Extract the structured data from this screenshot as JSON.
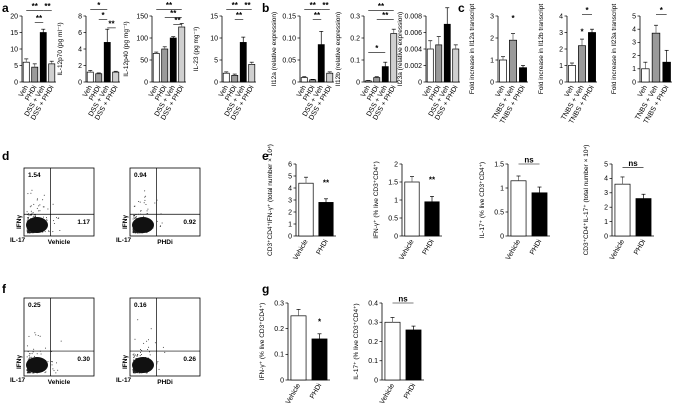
{
  "panels": [
    "a",
    "b",
    "c",
    "d",
    "e",
    "f",
    "g"
  ],
  "flow_axes": {
    "y": "IFNγ",
    "x": "IL-17"
  },
  "flow_plots": [
    {
      "name": "Vehicle",
      "upper_left": "1.54",
      "lower_right": "1.17"
    },
    {
      "name": "PHDi",
      "upper_left": "0.94",
      "lower_right": "0.92"
    },
    {
      "name": "Vehicle",
      "upper_left": "0.25",
      "lower_right": "0.30"
    },
    {
      "name": "PHDi",
      "upper_left": "0.16",
      "lower_right": "0.26"
    }
  ],
  "chart_data": [
    {
      "type": "bar",
      "ylabel": "IFN-γ (pg mg⁻¹)",
      "categories": [
        "Veh",
        "PHDi",
        "DSS + Veh",
        "DSS + PHDi"
      ],
      "values": [
        6,
        4.5,
        15,
        5.5
      ],
      "errors": [
        1,
        1,
        1,
        0.8
      ],
      "colors": [
        "#ffffff",
        "#9a9a9a",
        "#000000",
        "#d0d0d0"
      ],
      "ylim": [
        0,
        20
      ],
      "yticks": [
        0,
        5,
        10,
        15,
        20
      ],
      "significance": [
        "**",
        "**",
        "**"
      ]
    },
    {
      "type": "bar",
      "ylabel": "IL-12p70 (pg ml⁻¹)",
      "categories": [
        "Veh",
        "PHDi",
        "DSS + Veh",
        "DSS + PHDi"
      ],
      "values": [
        1.2,
        1,
        4.8,
        1.2
      ],
      "errors": [
        0.2,
        0.1,
        1.6,
        0.1
      ],
      "colors": [
        "#ffffff",
        "#9a9a9a",
        "#000000",
        "#d0d0d0"
      ],
      "ylim": [
        0,
        8
      ],
      "yticks": [
        0,
        2,
        4,
        6,
        8
      ],
      "significance": [
        "*",
        "*",
        "**"
      ]
    },
    {
      "type": "bar",
      "ylabel": "IL-12p40 (pg mg⁻¹)",
      "categories": [
        "Veh",
        "PHDi",
        "DSS + Veh",
        "DSS + PHDi"
      ],
      "values": [
        65,
        75,
        100,
        125
      ],
      "errors": [
        3,
        5,
        3,
        8
      ],
      "colors": [
        "#ffffff",
        "#9a9a9a",
        "#000000",
        "#d0d0d0"
      ],
      "ylim": [
        0,
        150
      ],
      "yticks": [
        0,
        50,
        100,
        150
      ],
      "significance": [
        "**",
        "**",
        "**"
      ]
    },
    {
      "type": "bar",
      "ylabel": "IL-23 (pg mg⁻¹)",
      "categories": [
        "Veh",
        "PHDi",
        "DSS + Veh",
        "DSS + PHDi"
      ],
      "values": [
        2,
        1.5,
        9,
        4
      ],
      "errors": [
        0.3,
        0.3,
        1.2,
        0.5
      ],
      "colors": [
        "#ffffff",
        "#9a9a9a",
        "#000000",
        "#d0d0d0"
      ],
      "ylim": [
        0,
        15
      ],
      "yticks": [
        0,
        5,
        10,
        15
      ],
      "significance": [
        "**",
        "**",
        "**"
      ]
    },
    {
      "type": "bar",
      "ylabel": "Il12a (relative expression)",
      "categories": [
        "Veh",
        "PHDi",
        "DSS + Veh",
        "DSS + PHDi"
      ],
      "values": [
        0.01,
        0.005,
        0.085,
        0.02
      ],
      "errors": [
        0.002,
        0.001,
        0.03,
        0.003
      ],
      "colors": [
        "#ffffff",
        "#9a9a9a",
        "#000000",
        "#d0d0d0"
      ],
      "ylim": [
        0,
        0.15
      ],
      "yticks": [
        0,
        0.05,
        {
          "value": 0.1,
          "label": "0.10"
        },
        0.15
      ],
      "significance": [
        "**",
        "**",
        "**"
      ]
    },
    {
      "type": "bar",
      "ylabel": "Il12b (relative expression)",
      "categories": [
        "Veh",
        "PHDi",
        "DSS + Veh",
        "DSS + PHDi"
      ],
      "values": [
        0.005,
        0.02,
        0.07,
        0.22
      ],
      "errors": [
        0.002,
        0.004,
        0.02,
        0.02
      ],
      "colors": [
        "#ffffff",
        "#9a9a9a",
        "#000000",
        "#d0d0d0"
      ],
      "ylim": [
        0,
        0.3
      ],
      "yticks": [
        0,
        0.1,
        0.2,
        0.3
      ],
      "significance": [
        "**",
        "**",
        "*"
      ]
    },
    {
      "type": "bar",
      "ylabel": "Il23a (relative expression)",
      "categories": [
        "Veh",
        "PHDi",
        "DSS + Veh",
        "DSS + PHDi"
      ],
      "values": [
        0.004,
        0.0045,
        0.007,
        0.004
      ],
      "errors": [
        0.001,
        0.001,
        0.002,
        0.0005
      ],
      "colors": [
        "#ffffff",
        "#9a9a9a",
        "#000000",
        "#d0d0d0"
      ],
      "ylim": [
        0,
        0.008
      ],
      "yticks": [
        0,
        0.002,
        0.004,
        0.006,
        0.008
      ],
      "significance": []
    },
    {
      "type": "bar",
      "ylabel": "Fold increase in Il12a transcript",
      "categories": [
        "Veh",
        "TNBS + Veh",
        "TNBS + PHDi"
      ],
      "values": [
        1,
        1.9,
        0.65
      ],
      "errors": [
        0.15,
        0.3,
        0.1
      ],
      "colors": [
        "#ffffff",
        "#9a9a9a",
        "#000000"
      ],
      "ylim": [
        0,
        3
      ],
      "yticks": [
        0,
        1,
        2,
        3
      ],
      "significance": [
        "*"
      ]
    },
    {
      "type": "bar",
      "ylabel": "Fold increase in Il12b transcript",
      "categories": [
        "Veh",
        "TNBS + Veh",
        "TNBS + PHDi"
      ],
      "values": [
        1,
        2.2,
        3
      ],
      "errors": [
        0.15,
        0.4,
        0.2
      ],
      "colors": [
        "#ffffff",
        "#9a9a9a",
        "#000000"
      ],
      "ylim": [
        0,
        4
      ],
      "yticks": [
        0,
        1,
        2,
        3,
        4
      ],
      "significance": [
        "*",
        "*"
      ]
    },
    {
      "type": "bar",
      "ylabel": "Fold increase in Il23a transcript",
      "categories": [
        "Veh",
        "TNBS + Veh",
        "TNBS + PHDi"
      ],
      "values": [
        1,
        3.7,
        1.5
      ],
      "errors": [
        0.5,
        0.6,
        0.9
      ],
      "colors": [
        "#ffffff",
        "#9a9a9a",
        "#000000"
      ],
      "ylim": [
        0,
        5
      ],
      "yticks": [
        0,
        1,
        2,
        3,
        4,
        5
      ],
      "significance": [
        "*"
      ]
    },
    {
      "type": "bar",
      "ylabel": "CD3⁺CD4⁺IFN-γ⁺ (total number × 10⁴)",
      "categories": [
        "Vehicle",
        "PHDi"
      ],
      "values": [
        4.4,
        2.8
      ],
      "errors": [
        0.5,
        0.3
      ],
      "colors": [
        "#ffffff",
        "#000000"
      ],
      "ylim": [
        0,
        6
      ],
      "yticks": [
        0,
        1,
        2,
        3,
        4,
        5,
        6
      ],
      "significance": [
        "**"
      ]
    },
    {
      "type": "bar",
      "ylabel": "IFN-γ⁺ (% live CD3⁺CD4⁺)",
      "categories": [
        "Vehicle",
        "PHDi"
      ],
      "values": [
        1.5,
        0.95
      ],
      "errors": [
        0.15,
        0.15
      ],
      "colors": [
        "#ffffff",
        "#000000"
      ],
      "ylim": [
        0,
        2
      ],
      "yticks": [
        0,
        0.5,
        1,
        1.5,
        2
      ],
      "significance": [
        "**"
      ]
    },
    {
      "type": "bar",
      "ylabel": "IL-17⁺ (% live CD3⁺CD4⁺)",
      "categories": [
        "Vehicle",
        "PHDi"
      ],
      "values": [
        1.15,
        0.9
      ],
      "errors": [
        0.1,
        0.12
      ],
      "colors": [
        "#ffffff",
        "#000000"
      ],
      "ylim": [
        0,
        1.5
      ],
      "yticks": [
        0,
        0.5,
        1,
        1.5
      ],
      "significance": [
        "ns"
      ]
    },
    {
      "type": "bar",
      "ylabel": "CD3⁺CD4⁺IL-17⁺ (total number × 10⁴)",
      "categories": [
        "Vehicle",
        "PHDi"
      ],
      "values": [
        3.6,
        2.6
      ],
      "errors": [
        0.5,
        0.3
      ],
      "colors": [
        "#ffffff",
        "#000000"
      ],
      "ylim": [
        0,
        5
      ],
      "yticks": [
        0,
        1,
        2,
        3,
        4,
        5
      ],
      "significance": [
        "ns"
      ]
    },
    {
      "type": "bar",
      "ylabel": "IFN-γ⁺ (% live CD3⁺CD4⁺)",
      "categories": [
        "Vehicle",
        "PHDi"
      ],
      "values": [
        0.25,
        0.16
      ],
      "errors": [
        0.025,
        0.02
      ],
      "colors": [
        "#ffffff",
        "#000000"
      ],
      "ylim": [
        0,
        0.3
      ],
      "yticks": [
        0,
        0.1,
        0.2,
        0.3
      ],
      "significance": [
        "*"
      ]
    },
    {
      "type": "bar",
      "ylabel": "IL-17⁺ (% live CD3⁺CD4⁺)",
      "categories": [
        "Vehicle",
        "PHDi"
      ],
      "values": [
        0.3,
        0.26
      ],
      "errors": [
        0.025,
        0.02
      ],
      "colors": [
        "#ffffff",
        "#000000"
      ],
      "ylim": [
        0,
        0.4
      ],
      "yticks": [
        0,
        0.1,
        0.2,
        0.3,
        0.4
      ],
      "significance": [
        "ns"
      ]
    }
  ]
}
